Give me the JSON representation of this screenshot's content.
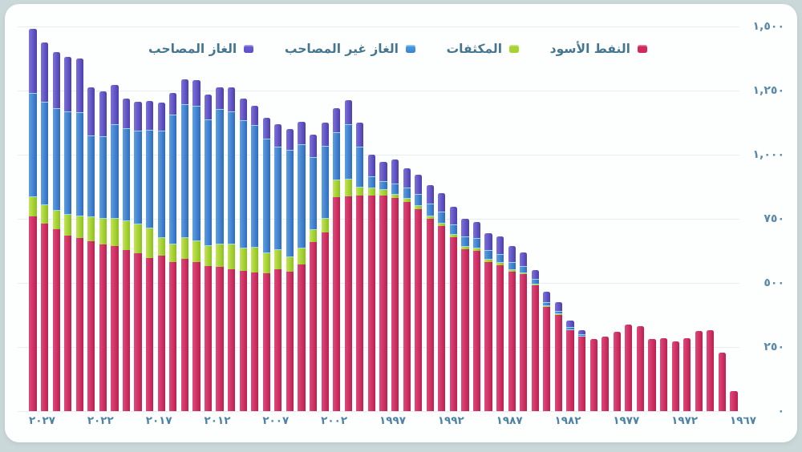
{
  "page": {
    "background_color": "#cbd8d9",
    "card_color": "#fdfefe",
    "axis_label_color": "#4d82a6",
    "grid_color": "#e8edef"
  },
  "chart_data": {
    "type": "bar",
    "stacked": true,
    "rtl": true,
    "title": "",
    "xlabel": "",
    "ylabel": "",
    "ylim": [
      0,
      1500
    ],
    "grid": true,
    "legend_position": "top",
    "years": [
      2027,
      2026,
      2025,
      2024,
      2023,
      2022,
      2021,
      2020,
      2019,
      2018,
      2017,
      2016,
      2015,
      2014,
      2013,
      2012,
      2011,
      2010,
      2009,
      2008,
      2007,
      2006,
      2005,
      2004,
      2003,
      2002,
      2001,
      2000,
      1999,
      1998,
      1997,
      1996,
      1995,
      1994,
      1993,
      1992,
      1991,
      1990,
      1989,
      1988,
      1987,
      1986,
      1985,
      1984,
      1983,
      1982,
      1981,
      1980,
      1979,
      1978,
      1977,
      1976,
      1975,
      1974,
      1973,
      1972,
      1971,
      1970,
      1969,
      1968,
      1967
    ],
    "x_tick_labels": [
      "٢٠٢٧",
      "٢٠٢٢",
      "٢٠١٧",
      "٢٠١٢",
      "٢٠٠٧",
      "٢٠٠٢",
      "١٩٩٧",
      "١٩٩٢",
      "١٩٨٧",
      "١٩٨٢",
      "١٩٧٧",
      "١٩٧٢",
      "١٩٦٧"
    ],
    "x_tick_years": [
      2027,
      2022,
      2017,
      2012,
      2007,
      2002,
      1997,
      1992,
      1987,
      1982,
      1977,
      1972,
      1967
    ],
    "y_ticks": [
      0,
      250,
      500,
      750,
      1000,
      1250,
      1500
    ],
    "y_tick_labels": [
      "٠",
      "٢٥٠",
      "٥٠٠",
      "٧٥٠",
      "١,٠٠٠",
      "١,٢٥٠",
      "١,٥٠٠"
    ],
    "series": [
      {
        "id": "crude",
        "name": "النفط الأسود",
        "color": "#cd2a5e",
        "legend_swatch_color": "#d8275a",
        "values": [
          760,
          732,
          708,
          685,
          674,
          662,
          651,
          643,
          627,
          617,
          596,
          607,
          580,
          593,
          580,
          565,
          561,
          554,
          547,
          541,
          537,
          554,
          544,
          573,
          660,
          697,
          834,
          838,
          842,
          842,
          841,
          831,
          817,
          789,
          750,
          721,
          677,
          631,
          624,
          582,
          570,
          544,
          533,
          490,
          405,
          375,
          315,
          290,
          280,
          290,
          309,
          337,
          332,
          280,
          285,
          273,
          285,
          314,
          316,
          228,
          79
        ]
      },
      {
        "id": "cond",
        "name": "المكثفات",
        "color": "#a6d232",
        "legend_swatch_color": "#a6d232",
        "values": [
          75,
          70,
          72,
          80,
          86,
          94,
          100,
          106,
          115,
          112,
          115,
          67,
          71,
          81,
          84,
          80,
          90,
          97,
          88,
          97,
          80,
          73,
          57,
          60,
          47,
          52,
          66,
          65,
          30,
          26,
          20,
          12,
          12,
          11,
          10,
          11,
          10,
          10,
          11,
          9,
          8,
          7,
          6,
          5,
          4,
          3,
          2,
          1,
          0,
          0,
          0,
          0,
          0,
          0,
          0,
          0,
          0,
          0,
          0,
          0,
          0
        ]
      },
      {
        "id": "nonassoc",
        "name": "الغاز غير المصاحب",
        "color": "#3f7fd0",
        "legend_swatch_color": "#4aa3e0",
        "values": [
          405,
          405,
          400,
          405,
          405,
          320,
          322,
          369,
          362,
          366,
          386,
          420,
          504,
          522,
          527,
          494,
          526,
          519,
          498,
          477,
          444,
          404,
          418,
          409,
          285,
          286,
          188,
          216,
          160,
          48,
          36,
          45,
          44,
          46,
          48,
          47,
          42,
          39,
          39,
          36,
          36,
          31,
          26,
          21,
          15,
          13,
          12,
          8,
          0,
          0,
          0,
          0,
          0,
          0,
          0,
          0,
          0,
          0,
          0,
          0,
          0
        ]
      },
      {
        "id": "assoc",
        "name": "الغاز المصاحب",
        "color": "#5b4fc4",
        "legend_swatch_color": "#6f61d6",
        "values": [
          250,
          230,
          220,
          212,
          209,
          185,
          173,
          154,
          115,
          111,
          112,
          108,
          85,
          99,
          99,
          94,
          87,
          91,
          86,
          76,
          83,
          87,
          81,
          87,
          87,
          89,
          93,
          94,
          92,
          85,
          76,
          93,
          75,
          77,
          72,
          71,
          69,
          70,
          65,
          66,
          66,
          63,
          55,
          35,
          42,
          35,
          24,
          17,
          0,
          0,
          0,
          0,
          0,
          0,
          0,
          0,
          0,
          0,
          0,
          0,
          0
        ]
      }
    ]
  }
}
